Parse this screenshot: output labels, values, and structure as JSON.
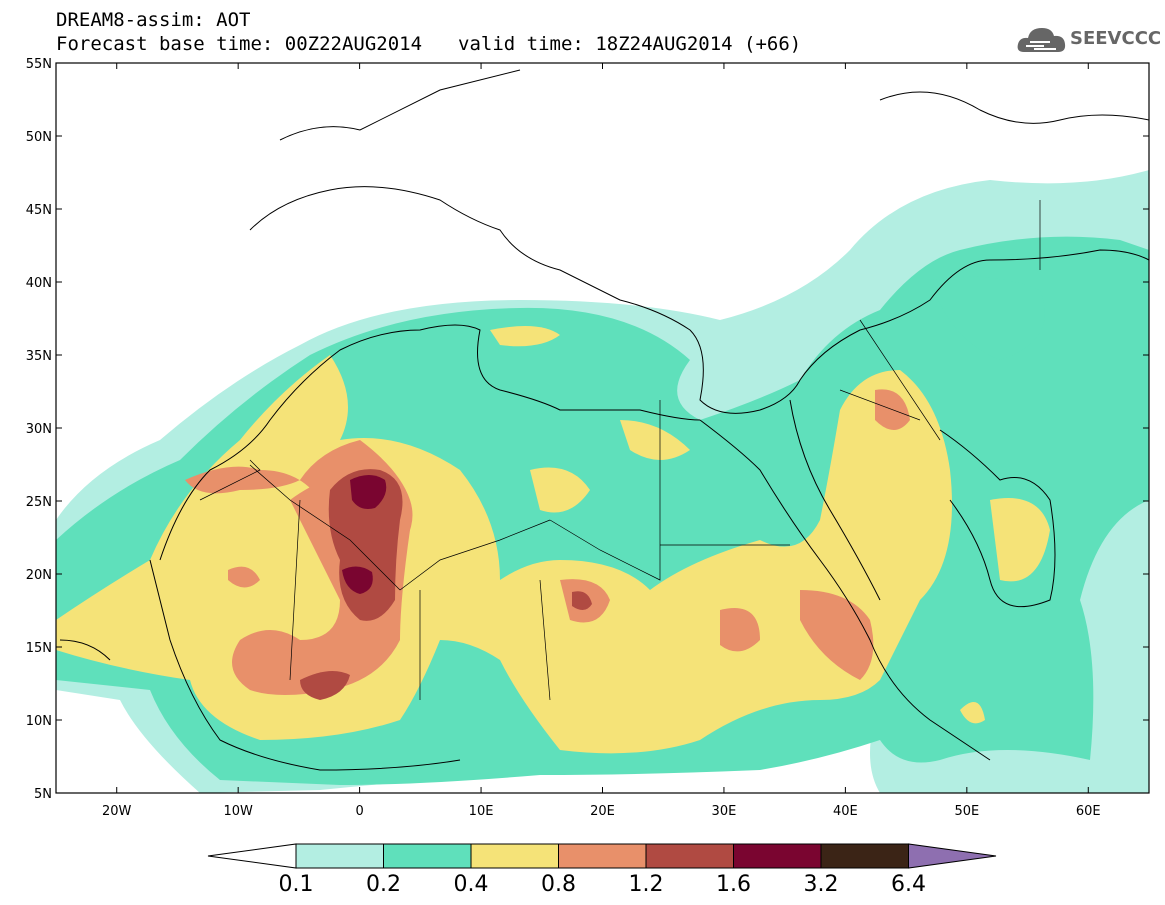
{
  "title": {
    "line1": "DREAM8-assim: AOT",
    "base_time": "Forecast base time: 00Z22AUG2014",
    "valid_time": "valid time: 18Z24AUG2014 (+66)"
  },
  "logo": {
    "text": "SEEVCCC",
    "icon": "cloud-icon"
  },
  "map": {
    "lat_labels": [
      "55N",
      "50N",
      "45N",
      "40N",
      "35N",
      "30N",
      "25N",
      "20N",
      "15N",
      "10N",
      "5N"
    ],
    "lon_labels": [
      "20W",
      "10W",
      "0",
      "10E",
      "20E",
      "30E",
      "40E",
      "50E",
      "60E"
    ],
    "extent": {
      "lon_min": -25,
      "lon_max": 65,
      "lat_min": 5,
      "lat_max": 55
    }
  },
  "colorbar": {
    "labels": [
      "0.1",
      "0.2",
      "0.4",
      "0.8",
      "1.2",
      "1.6",
      "3.2",
      "6.4"
    ],
    "colors": [
      "#ffffff",
      "#b3eee2",
      "#5fe0bb",
      "#f5e378",
      "#e8906a",
      "#b04a42",
      "#7a0530",
      "#3b2416",
      "#8e6fb0"
    ]
  }
}
